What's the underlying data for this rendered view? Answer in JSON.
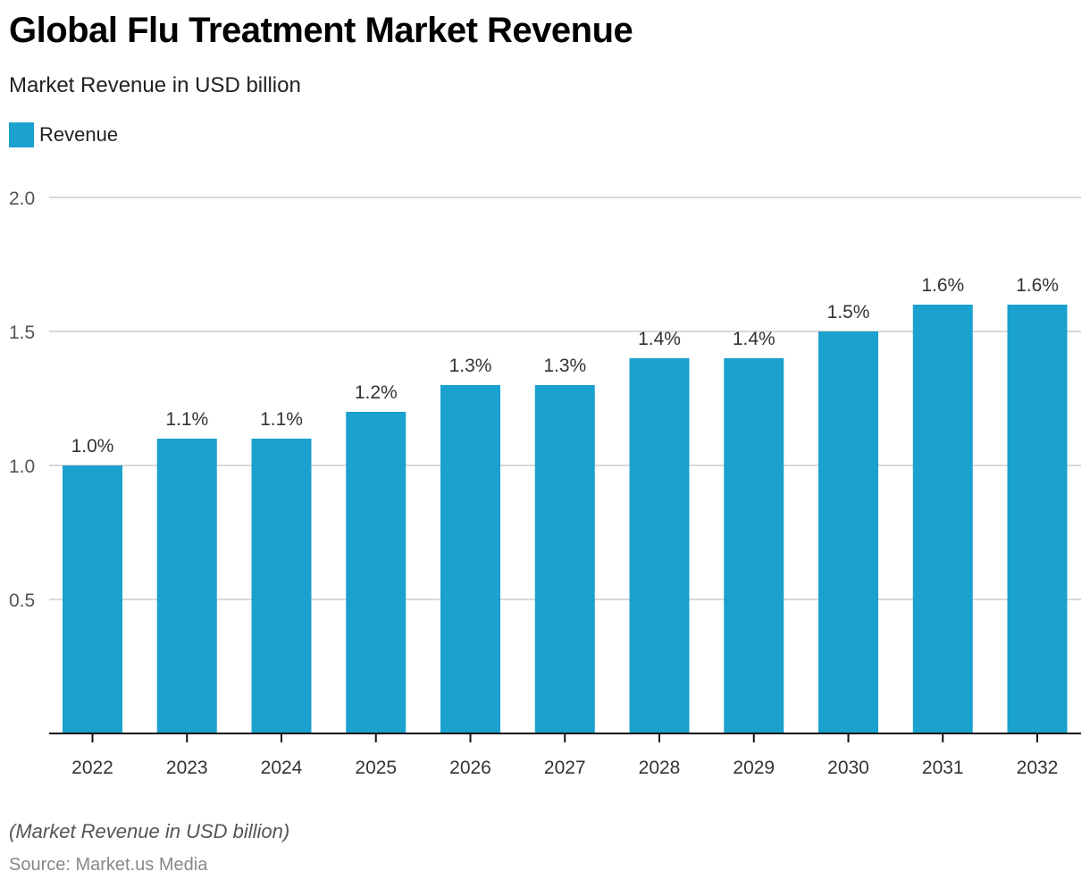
{
  "header": {
    "title": "Global Flu Treatment Market Revenue",
    "subtitle": "Market Revenue in USD billion"
  },
  "footer": {
    "note": "(Market Revenue in USD billion)",
    "source": "Source: Market.us Media"
  },
  "colors": {
    "bar": "#1aa1cd",
    "grid": "#d9d9d9",
    "axis": "#111111",
    "tick_text": "#555555",
    "label_text": "#333333"
  },
  "chart_data": {
    "type": "bar",
    "title": "Global Flu Treatment Market Revenue",
    "subtitle": "Market Revenue in USD billion",
    "xlabel": "",
    "ylabel": "",
    "categories": [
      "2022",
      "2023",
      "2024",
      "2025",
      "2026",
      "2027",
      "2028",
      "2029",
      "2030",
      "2031",
      "2032"
    ],
    "series": [
      {
        "name": "Revenue",
        "values": [
          1.0,
          1.1,
          1.1,
          1.2,
          1.3,
          1.3,
          1.4,
          1.4,
          1.5,
          1.6,
          1.6
        ],
        "data_labels": [
          "1.0%",
          "1.1%",
          "1.1%",
          "1.2%",
          "1.3%",
          "1.3%",
          "1.4%",
          "1.4%",
          "1.5%",
          "1.6%",
          "1.6%"
        ]
      }
    ],
    "ylim": [
      0,
      2.0
    ],
    "yticks": [
      0.5,
      1.0,
      1.5,
      2.0
    ],
    "ytick_labels": [
      "0.5",
      "1.0",
      "1.5",
      "2.0"
    ],
    "grid": true,
    "legend": {
      "position": "top-left",
      "entries": [
        "Revenue"
      ]
    }
  }
}
